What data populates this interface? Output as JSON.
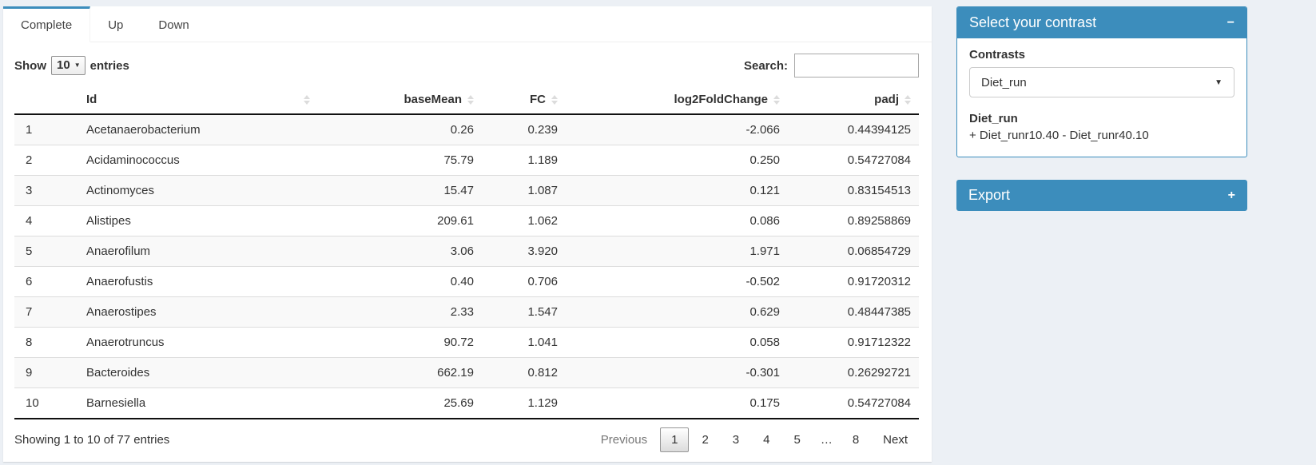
{
  "colors": {
    "accent": "#3c8dbc",
    "page_bg": "#ecf0f5",
    "stripe": "#f9f9f9"
  },
  "tabs": [
    {
      "label": "Complete",
      "active": true
    },
    {
      "label": "Up",
      "active": false
    },
    {
      "label": "Down",
      "active": false
    }
  ],
  "table_controls": {
    "show_label": "Show",
    "page_length": "10",
    "entries_label": "entries",
    "search_label": "Search:",
    "search_value": ""
  },
  "table": {
    "columns": [
      "Id",
      "baseMean",
      "FC",
      "log2FoldChange",
      "padj"
    ],
    "rows": [
      {
        "n": "1",
        "id": "Acetanaerobacterium",
        "baseMean": "0.26",
        "fc": "0.239",
        "log2fc": "-2.066",
        "padj": "0.44394125"
      },
      {
        "n": "2",
        "id": "Acidaminococcus",
        "baseMean": "75.79",
        "fc": "1.189",
        "log2fc": "0.250",
        "padj": "0.54727084"
      },
      {
        "n": "3",
        "id": "Actinomyces",
        "baseMean": "15.47",
        "fc": "1.087",
        "log2fc": "0.121",
        "padj": "0.83154513"
      },
      {
        "n": "4",
        "id": "Alistipes",
        "baseMean": "209.61",
        "fc": "1.062",
        "log2fc": "0.086",
        "padj": "0.89258869"
      },
      {
        "n": "5",
        "id": "Anaerofilum",
        "baseMean": "3.06",
        "fc": "3.920",
        "log2fc": "1.971",
        "padj": "0.06854729"
      },
      {
        "n": "6",
        "id": "Anaerofustis",
        "baseMean": "0.40",
        "fc": "0.706",
        "log2fc": "-0.502",
        "padj": "0.91720312"
      },
      {
        "n": "7",
        "id": "Anaerostipes",
        "baseMean": "2.33",
        "fc": "1.547",
        "log2fc": "0.629",
        "padj": "0.48447385"
      },
      {
        "n": "8",
        "id": "Anaerotruncus",
        "baseMean": "90.72",
        "fc": "1.041",
        "log2fc": "0.058",
        "padj": "0.91712322"
      },
      {
        "n": "9",
        "id": "Bacteroides",
        "baseMean": "662.19",
        "fc": "0.812",
        "log2fc": "-0.301",
        "padj": "0.26292721"
      },
      {
        "n": "10",
        "id": "Barnesiella",
        "baseMean": "25.69",
        "fc": "1.129",
        "log2fc": "0.175",
        "padj": "0.54727084"
      }
    ]
  },
  "footer": {
    "info": "Showing 1 to 10 of 77 entries",
    "previous_label": "Previous",
    "next_label": "Next",
    "ellipsis": "…",
    "current_page": "1",
    "pages": [
      "1",
      "2",
      "3",
      "4",
      "5",
      "…",
      "8"
    ]
  },
  "contrast_panel": {
    "title": "Select your contrast",
    "collapse_icon": "−",
    "contrasts_label": "Contrasts",
    "selected_contrast": "Diet_run",
    "detail_name": "Diet_run",
    "detail_formula": "+ Diet_runr10.40 - Diet_runr40.10"
  },
  "export_panel": {
    "title": "Export",
    "expand_icon": "+"
  }
}
